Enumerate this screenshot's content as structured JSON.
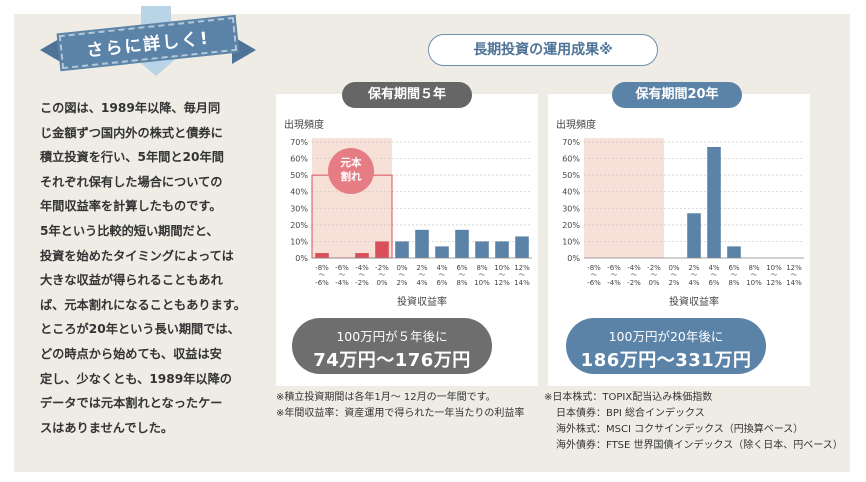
{
  "callout": {
    "ribbon": "さらに詳しく!",
    "lines": [
      "この図は、1989年以降、毎月同",
      "じ金額ずつ国内外の株式と債券に",
      "積立投資を行い、5年間と20年間",
      "それぞれ保有した場合についての",
      "年間収益率を計算したものです。",
      "5年という比較的短い期間だと、",
      "投資を始めたタイミングによっては",
      "大きな収益が得られることもあれ",
      "ば、元本割れになることもあります。",
      "ところが20年という長い期間では、",
      "どの時点から始めても、収益は安",
      "定し、少なくとも、1989年以降の",
      "データでは元本割れとなったケー",
      "スはありませんでした。"
    ]
  },
  "section_title": "長期投資の運用成果※",
  "charts": {
    "c5": {
      "tab": "保有期間５年",
      "loss_badge_l1": "元本",
      "loss_badge_l2": "割れ",
      "result_line1": "100万円が５年後に",
      "result_line2": "74万円〜176万円"
    },
    "c20": {
      "tab": "保有期間20年",
      "result_line1": "100万円が20年後に",
      "result_line2": "186万円〜331万円"
    }
  },
  "chart_data": [
    {
      "type": "bar",
      "title": "保有期間５年",
      "ylabel": "出現頻度",
      "xlabel": "投資収益率",
      "ylim": [
        0,
        70
      ],
      "yticks": [
        "0%",
        "10%",
        "20%",
        "30%",
        "40%",
        "50%",
        "60%",
        "70%"
      ],
      "categories_top": [
        "-8%",
        "-6%",
        "-4%",
        "-2%",
        "0%",
        "2%",
        "4%",
        "6%",
        "8%",
        "10%",
        "12%"
      ],
      "categories_bottom": [
        "-6%",
        "-4%",
        "-2%",
        "0%",
        "2%",
        "4%",
        "6%",
        "8%",
        "10%",
        "12%",
        "14%"
      ],
      "values": [
        3,
        0,
        3,
        10,
        10,
        17,
        7,
        17,
        10,
        10,
        13
      ],
      "colors": [
        "#d9505a",
        "#d9505a",
        "#d9505a",
        "#d9505a",
        "#5b83a8",
        "#5b83a8",
        "#5b83a8",
        "#5b83a8",
        "#5b83a8",
        "#5b83a8",
        "#5b83a8"
      ],
      "loss_zone": "-8%〜0%"
    },
    {
      "type": "bar",
      "title": "保有期間20年",
      "ylabel": "出現頻度",
      "xlabel": "投資収益率",
      "ylim": [
        0,
        70
      ],
      "yticks": [
        "0%",
        "10%",
        "20%",
        "30%",
        "40%",
        "50%",
        "60%",
        "70%"
      ],
      "categories_top": [
        "-8%",
        "-6%",
        "-4%",
        "-2%",
        "0%",
        "2%",
        "4%",
        "6%",
        "8%",
        "10%",
        "12%"
      ],
      "categories_bottom": [
        "-6%",
        "-4%",
        "-2%",
        "0%",
        "2%",
        "4%",
        "6%",
        "8%",
        "10%",
        "12%",
        "14%"
      ],
      "values": [
        0,
        0,
        0,
        0,
        0,
        27,
        67,
        7,
        0,
        0,
        0
      ],
      "colors": [
        "#5b83a8",
        "#5b83a8",
        "#5b83a8",
        "#5b83a8",
        "#5b83a8",
        "#5b83a8",
        "#5b83a8",
        "#5b83a8",
        "#5b83a8",
        "#5b83a8",
        "#5b83a8"
      ],
      "loss_zone": "-8%〜0%"
    }
  ],
  "notes_left": [
    "※積立投資期間は各年1月〜 12月の一年間です。",
    "※年間収益率：資産運用で得られた一年当たりの利益率"
  ],
  "notes_right": [
    "※日本株式：TOPIX配当込み株価指数",
    "日本債券：BPI 総合インデックス",
    "海外株式：MSCI コクサインデックス（円換算ベース）",
    "海外債券：FTSE 世界国債インデックス（除く日本、円ベース）"
  ],
  "colors": {
    "accent": "#5b83a8",
    "loss": "#d9505a",
    "loss_zone": "#f6e0d8",
    "panel": "#eeece5"
  }
}
